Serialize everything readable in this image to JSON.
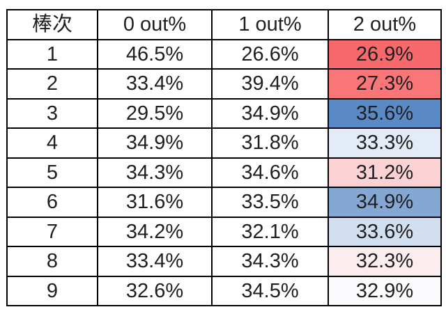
{
  "table": {
    "headers": {
      "order": "棒次",
      "out0": "0 out%",
      "out1": "1 out%",
      "out2": "2 out%"
    },
    "rows": [
      {
        "order": "1",
        "out0": "46.5%",
        "out1": "26.6%",
        "out2": "26.9%",
        "out2_bg": "#F8696B"
      },
      {
        "order": "2",
        "out0": "33.4%",
        "out1": "39.4%",
        "out2": "27.3%",
        "out2_bg": "#F87678"
      },
      {
        "order": "3",
        "out0": "29.5%",
        "out1": "34.9%",
        "out2": "35.6%",
        "out2_bg": "#5A8AC6"
      },
      {
        "order": "4",
        "out0": "34.9%",
        "out1": "31.8%",
        "out2": "33.3%",
        "out2_bg": "#E3EBF6"
      },
      {
        "order": "5",
        "out0": "34.3%",
        "out1": "34.6%",
        "out2": "31.2%",
        "out2_bg": "#FAD2D4"
      },
      {
        "order": "6",
        "out0": "31.6%",
        "out1": "33.5%",
        "out2": "34.9%",
        "out2_bg": "#84A7D4"
      },
      {
        "order": "7",
        "out0": "34.2%",
        "out1": "32.1%",
        "out2": "33.6%",
        "out2_bg": "#D2DFF0"
      },
      {
        "order": "8",
        "out0": "33.4%",
        "out1": "34.3%",
        "out2": "32.3%",
        "out2_bg": "#FBECEE"
      },
      {
        "order": "9",
        "out0": "32.6%",
        "out1": "34.5%",
        "out2": "32.9%",
        "out2_bg": "#FBFBFE"
      }
    ],
    "colors": {
      "border": "#000000",
      "text": "#1f1f1f",
      "background": "#ffffff"
    }
  },
  "chart_data": {
    "type": "table",
    "columns": [
      "棒次",
      "0 out%",
      "1 out%",
      "2 out%"
    ],
    "categories": [
      "1",
      "2",
      "3",
      "4",
      "5",
      "6",
      "7",
      "8",
      "9"
    ],
    "series": [
      {
        "name": "0 out%",
        "values": [
          46.5,
          33.4,
          29.5,
          34.9,
          34.3,
          31.6,
          34.2,
          33.4,
          32.6
        ]
      },
      {
        "name": "1 out%",
        "values": [
          26.6,
          39.4,
          34.9,
          31.8,
          34.6,
          33.5,
          32.1,
          34.3,
          34.5
        ]
      },
      {
        "name": "2 out%",
        "values": [
          26.9,
          27.3,
          35.6,
          33.3,
          31.2,
          34.9,
          33.6,
          32.3,
          32.9
        ]
      }
    ],
    "conditional_formatting": {
      "column": "2 out%",
      "scale": "red-white-blue",
      "min_value": 26.9,
      "mid_value": 32.9,
      "max_value": 35.6,
      "min_color": "#F8696B",
      "mid_color": "#FCFCFF",
      "max_color": "#5A8AC6",
      "cell_colors": [
        "#F8696B",
        "#F87678",
        "#5A8AC6",
        "#E3EBF6",
        "#FAD2D4",
        "#84A7D4",
        "#D2DFF0",
        "#FBECEE",
        "#FBFBFE"
      ]
    },
    "layout": {
      "grid": "all-cell-borders",
      "legend": "none",
      "title": ""
    }
  }
}
